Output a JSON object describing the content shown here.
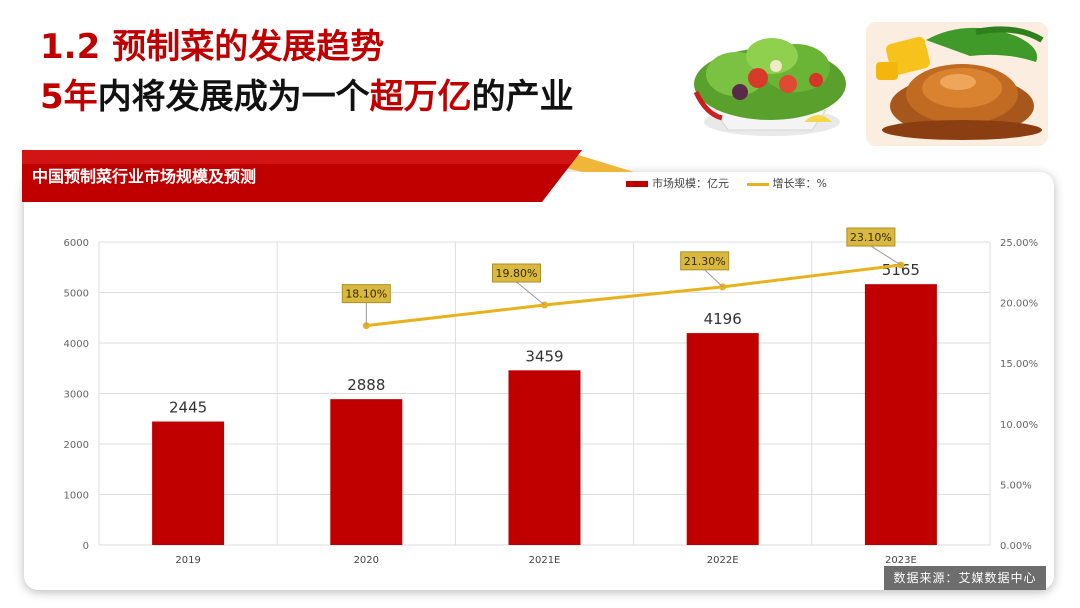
{
  "header": {
    "number": "1.2",
    "title": "预制菜的发展趋势",
    "subtitle_parts": [
      "5年",
      "内将发展成为一个",
      "超万亿",
      "的产业"
    ]
  },
  "images": {
    "salad_photo": "salad",
    "dish_photo": "abalone-dish"
  },
  "colors": {
    "accent": "#c00000",
    "line": "#e8b21e",
    "label_box": "#d9b840"
  },
  "chart_data": {
    "type": "bar",
    "title": "中国预制菜行业市场规模及预测",
    "categories": [
      "2019",
      "2020",
      "2021E",
      "2022E",
      "2023E"
    ],
    "series": [
      {
        "name": "市场规模：亿元",
        "type": "bar",
        "axis": "left",
        "values": [
          2445,
          2888,
          3459,
          4196,
          5165
        ]
      },
      {
        "name": "增长率：%",
        "type": "line",
        "axis": "right",
        "values": [
          null,
          18.1,
          19.8,
          21.3,
          23.1
        ]
      }
    ],
    "data_labels_bar": [
      "2445",
      "2888",
      "3459",
      "4196",
      "5165"
    ],
    "data_labels_line": [
      "",
      "18.10%",
      "19.80%",
      "21.30%",
      "23.10%"
    ],
    "ylim_left": [
      0,
      6000
    ],
    "yticks_left": [
      "0",
      "1000",
      "2000",
      "3000",
      "4000",
      "5000",
      "6000"
    ],
    "ylim_right": [
      0,
      25
    ],
    "yticks_right": [
      "0.00%",
      "5.00%",
      "10.00%",
      "15.00%",
      "20.00%",
      "25.00%"
    ],
    "grid": true,
    "legend": "top-right"
  },
  "source": "数据来源：艾媒数据中心"
}
